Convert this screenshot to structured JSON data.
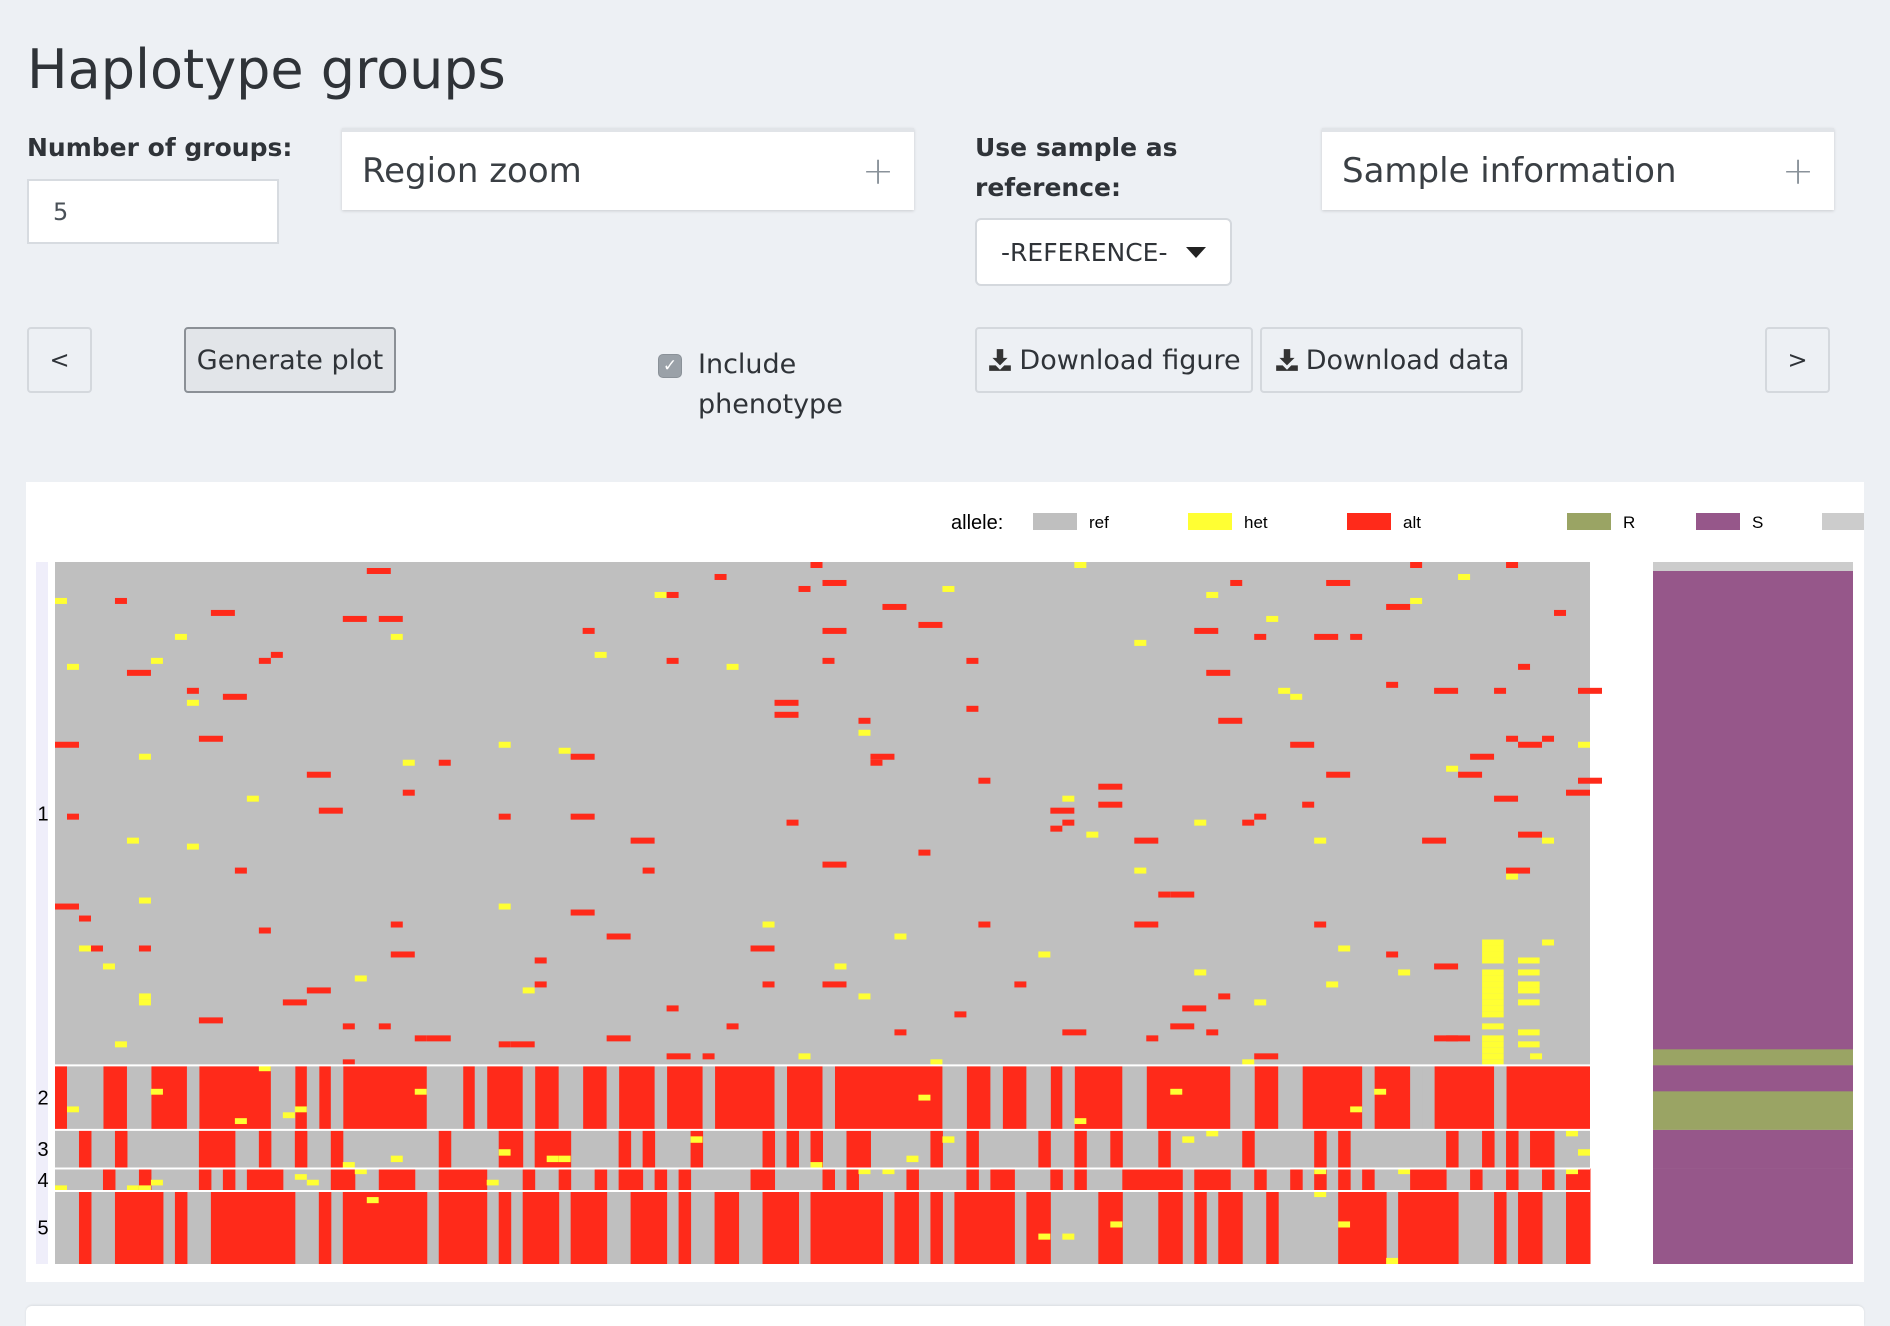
{
  "header": {
    "title": "Haplotype groups"
  },
  "controls": {
    "groups_label": "Number of groups:",
    "groups_value": "5",
    "region_zoom_label": "Region zoom",
    "expand_symbol": "+",
    "ref_label": "Use sample as reference:",
    "ref_selected": "-REFERENCE-",
    "sample_info_label": "Sample information",
    "prev_label": "<",
    "next_label": ">",
    "generate_label": "Generate plot",
    "include_phenotype_label": "Include phenotype",
    "include_phenotype_checked": true,
    "download_figure_label": "Download figure",
    "download_data_label": "Download data"
  },
  "chart_data": {
    "type": "heatmap",
    "legend": {
      "title": "allele:",
      "entries": [
        {
          "name": "ref",
          "color": "#bfbfbf"
        },
        {
          "name": "het",
          "color": "#ffff33"
        },
        {
          "name": "alt",
          "color": "#ff2a1a"
        },
        {
          "name": "R",
          "color": "#9aa464"
        },
        {
          "name": "S",
          "color": "#96578a"
        },
        {
          "name": "",
          "color": "#cccccc"
        }
      ]
    },
    "groups": [
      {
        "label": "1",
        "fraction": 0.717,
        "dominant": "ref",
        "alt_density": 0.01,
        "het_density": 0.006,
        "phenotype": "S"
      },
      {
        "label": "2",
        "fraction": 0.092,
        "dominant": "alt",
        "alt_density": 0.62,
        "het_density": 0.03,
        "phenotype": "R"
      },
      {
        "label": "3",
        "fraction": 0.055,
        "dominant": "mixed",
        "alt_density": 0.3,
        "het_density": 0.02,
        "phenotype": "S"
      },
      {
        "label": "4",
        "fraction": 0.032,
        "dominant": "mixed",
        "alt_density": 0.4,
        "het_density": 0.03,
        "phenotype": "S"
      },
      {
        "label": "5",
        "fraction": 0.104,
        "dominant": "mixed",
        "alt_density": 0.55,
        "het_density": 0.02,
        "phenotype": "S"
      }
    ],
    "phenotype_colors": {
      "R": "#9aa464",
      "S": "#96578a",
      "NA": "#cccccc"
    },
    "grid": false
  }
}
